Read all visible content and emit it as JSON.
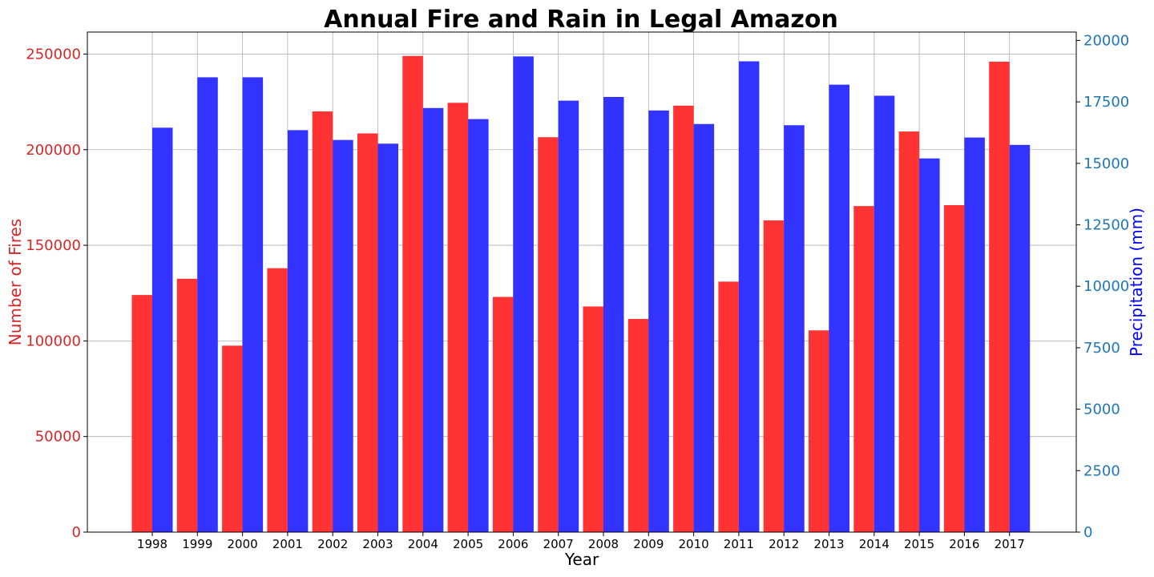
{
  "chart_data": {
    "type": "bar",
    "title": "Annual Fire and Rain in Legal Amazon",
    "xlabel": "Year",
    "ylabel_left": "Number of Fires",
    "ylabel_right": "Precipitation (mm)",
    "categories": [
      "1998",
      "1999",
      "2000",
      "2001",
      "2002",
      "2003",
      "2004",
      "2005",
      "2006",
      "2007",
      "2008",
      "2009",
      "2010",
      "2011",
      "2012",
      "2013",
      "2014",
      "2015",
      "2016",
      "2017"
    ],
    "series": [
      {
        "name": "Number of Fires",
        "axis": "left",
        "color": "#ff3333",
        "values": [
          124000,
          132500,
          97500,
          138000,
          220000,
          208500,
          249000,
          224500,
          123000,
          206500,
          118000,
          111500,
          223000,
          131000,
          163000,
          105500,
          170500,
          209500,
          171000,
          246000
        ]
      },
      {
        "name": "Precipitation (mm)",
        "axis": "right",
        "color": "#3333ff",
        "values": [
          16450,
          18500,
          18500,
          16350,
          15950,
          15800,
          17250,
          16800,
          19350,
          17550,
          17700,
          17150,
          16600,
          19150,
          16550,
          18200,
          17750,
          15200,
          16050,
          15750
        ]
      }
    ],
    "ylim_left": [
      0,
      261500
    ],
    "ylim_right": [
      0,
      20340
    ],
    "yticks_left": [
      "0",
      "50000",
      "100000",
      "150000",
      "200000",
      "250000"
    ],
    "yticks_right": [
      "0",
      "2500",
      "5000",
      "7500",
      "10000",
      "12500",
      "15000",
      "17500",
      "20000"
    ],
    "left_axis_color": "#d62728",
    "right_axis_color": "#1f77b4",
    "right_label_color": "#0000ff",
    "grid": true
  }
}
